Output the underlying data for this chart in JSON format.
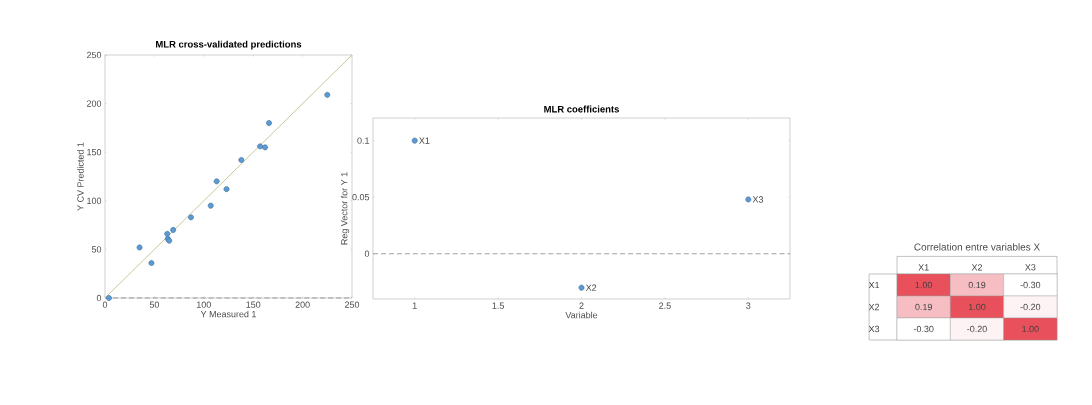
{
  "chart_data": [
    {
      "type": "scatter",
      "title": "MLR cross-validated predictions",
      "xlabel": "Y Measured 1",
      "ylabel": "Y CV Predicted 1",
      "xlim": [
        0,
        250
      ],
      "ylim": [
        0,
        250
      ],
      "xticks": [
        0,
        50,
        100,
        150,
        200,
        250
      ],
      "yticks": [
        0,
        50,
        100,
        150,
        200,
        250
      ],
      "series": [
        {
          "type": "scatter",
          "marker": "circle",
          "color": "#5b9bd5",
          "x": [
            4,
            35,
            47,
            63,
            63.5,
            65,
            69,
            87,
            107,
            113,
            123,
            138,
            157,
            162,
            166,
            225
          ],
          "values": [
            0,
            52,
            36,
            66,
            61,
            59,
            70,
            83,
            95,
            120,
            112,
            142,
            156,
            155,
            180,
            209
          ]
        },
        {
          "type": "line",
          "marker": "none",
          "color": "#c8c89a",
          "x": [
            0,
            250
          ],
          "values": [
            0,
            250
          ]
        }
      ],
      "ref_lines": [
        {
          "axis": "y",
          "value": 0,
          "color": "#888888",
          "line_style": "dashed"
        }
      ]
    },
    {
      "type": "scatter",
      "title": "MLR coefficients",
      "xlabel": "Variable",
      "ylabel": "Reg Vector for Y 1",
      "xlim": [
        0.75,
        3.25
      ],
      "ylim": [
        -0.04,
        0.12
      ],
      "xticks": [
        1,
        1.5,
        2,
        2.5,
        3
      ],
      "yticks": [
        0,
        0.05,
        0.1
      ],
      "series": [
        {
          "marker": "circle",
          "color": "#5b9bd5",
          "x": [
            1,
            2,
            3
          ],
          "values": [
            0.1,
            -0.03,
            0.048
          ]
        }
      ],
      "annotations": [
        {
          "text": "X1",
          "x": 1,
          "y": 0.1
        },
        {
          "text": "X2",
          "x": 2,
          "y": -0.03
        },
        {
          "text": "X3",
          "x": 3,
          "y": 0.048
        }
      ],
      "ref_lines": [
        {
          "axis": "y",
          "value": 0,
          "color": "#888888",
          "line_style": "dashed"
        }
      ]
    },
    {
      "type": "heatmap",
      "title": "Correlation entre variables X",
      "categories": [
        "X1",
        "X2",
        "X3"
      ],
      "y_categories": [
        "X1",
        "X2",
        "X3"
      ],
      "cells": [
        [
          1.0,
          0.19,
          -0.3
        ],
        [
          0.19,
          1.0,
          -0.2
        ],
        [
          -0.3,
          -0.2,
          1.0
        ]
      ],
      "cell_labels": [
        [
          "1.00",
          "0.19",
          "-0.30"
        ],
        [
          "0.19",
          "1.00",
          "-0.20"
        ],
        [
          "-0.30",
          "-0.20",
          "1.00"
        ]
      ]
    }
  ]
}
